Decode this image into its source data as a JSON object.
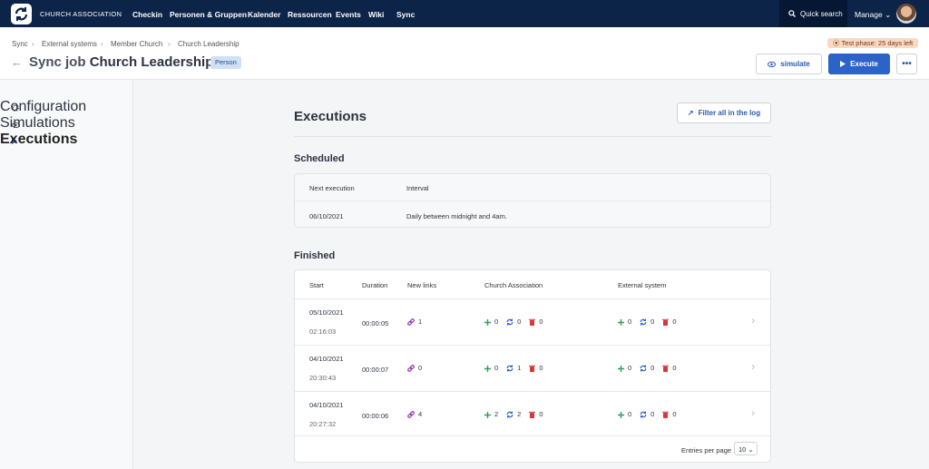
{
  "nav": {
    "brand": "CHURCH ASSOCIATION",
    "items": [
      "Checkin",
      "Personen & Gruppen",
      "Kalender",
      "Ressourcen",
      "Events",
      "Wiki",
      "Sync"
    ],
    "search": "Quick search",
    "manage": "Manage"
  },
  "breadcrumb": [
    "Sync",
    "External systems",
    "Member Church",
    "Church Leadership"
  ],
  "trial": "Test phase: 25 days left",
  "header": {
    "prefix": "Sync job",
    "title": "Church Leadership",
    "tag": "Person",
    "simulate": "simulate",
    "execute": "Execute"
  },
  "sidebar": [
    "Configuration",
    "Simulations",
    "Executions"
  ],
  "executions": {
    "title": "Executions",
    "filter": "Filter all in the log"
  },
  "scheduled": {
    "title": "Scheduled",
    "columns": [
      "Next execution",
      "Interval"
    ],
    "rows": [
      [
        "06/10/2021",
        "Daily between midnight and 4am."
      ]
    ]
  },
  "finished": {
    "title": "Finished",
    "columns": [
      "Start",
      "Duration",
      "New links",
      "Church Association",
      "External system"
    ],
    "rows": [
      {
        "date": "05/10/2021",
        "time": "02:16:03",
        "duration": "00:00:05",
        "links": 1,
        "church_association": [
          0,
          0,
          0
        ],
        "external_system": [
          0,
          0,
          0
        ]
      },
      {
        "date": "04/10/2021",
        "time": "20:30:43",
        "duration": "00:00:07",
        "links": 0,
        "church_association": [
          0,
          1,
          0
        ],
        "external_system": [
          0,
          0,
          0
        ]
      },
      {
        "date": "04/10/2021",
        "time": "20:27:32",
        "duration": "00:00:06",
        "links": 4,
        "church_association": [
          2,
          2,
          0
        ],
        "external_system": [
          0,
          0,
          0
        ]
      }
    ],
    "entries_label": "Entries per page",
    "entries": 10
  }
}
